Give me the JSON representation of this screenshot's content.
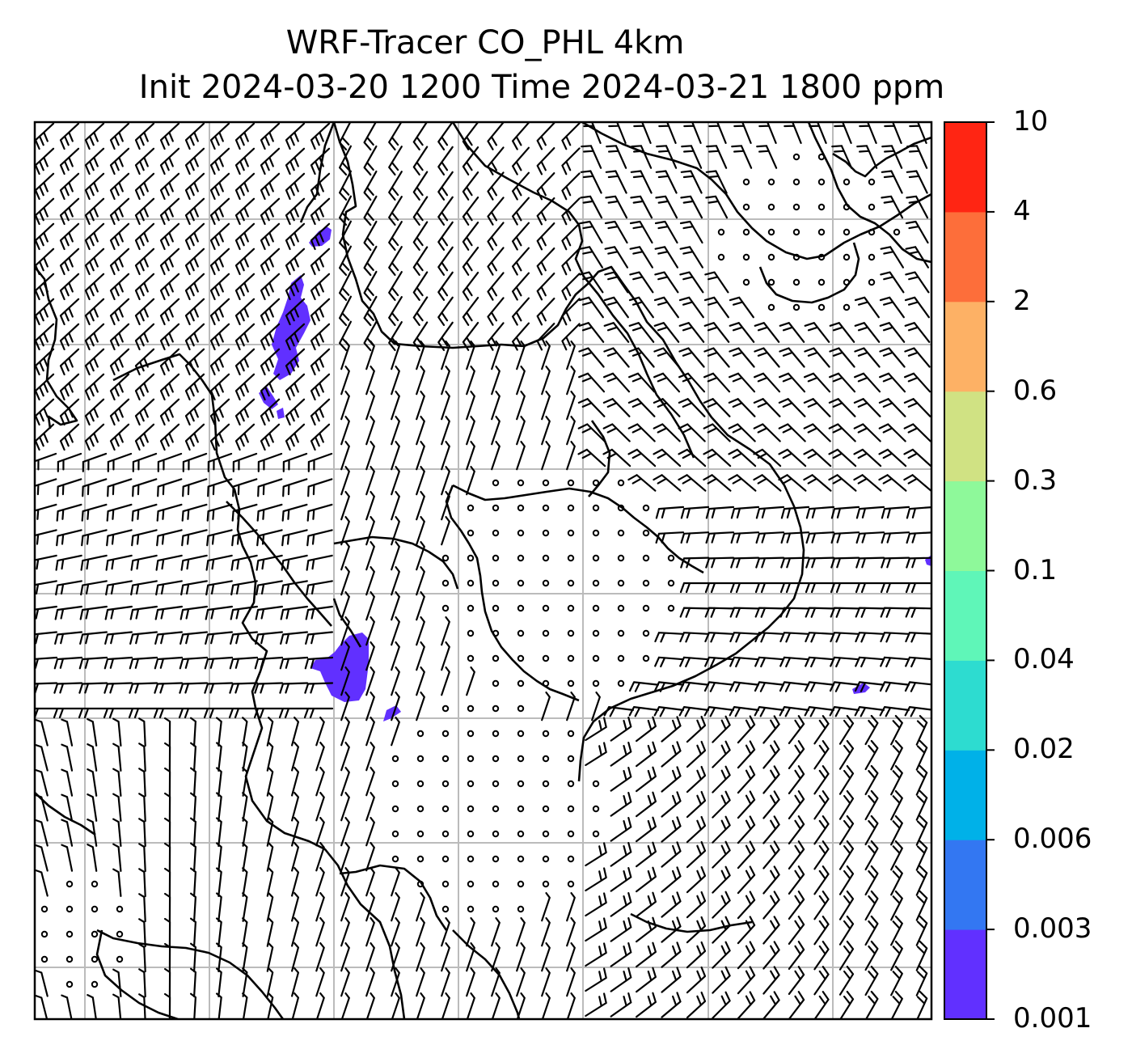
{
  "title": {
    "line1": "WRF-Tracer CO_PHL 4km",
    "line2": "Init 2024-03-20 1200 Time 2024-03-21 1800 ppm"
  },
  "colorbar": {
    "levels": [
      "0.001",
      "0.003",
      "0.006",
      "0.02",
      "0.04",
      "0.1",
      "0.3",
      "0.6",
      "2",
      "4",
      "10"
    ],
    "colors": [
      "#6130ff",
      "#3377f2",
      "#00b1e8",
      "#2ddcd0",
      "#5ff6b8",
      "#8ef99a",
      "#d0e283",
      "#fdb165",
      "#fd6e3a",
      "#ff2513"
    ]
  },
  "map": {
    "gridlines": true,
    "plume_color": "#6130ff",
    "wind_barbs": "black",
    "coastline_color": "black",
    "grid_color": "#bbbbbb"
  }
}
